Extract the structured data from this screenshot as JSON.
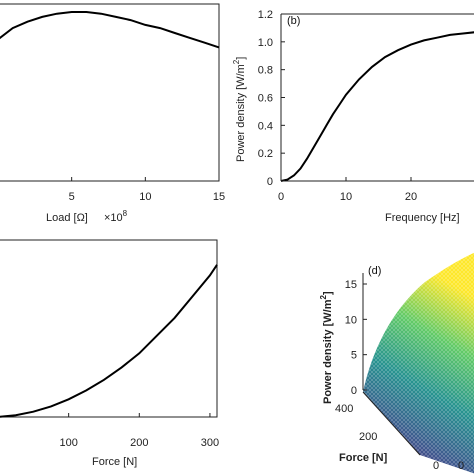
{
  "chart_data": [
    {
      "panel": "a",
      "type": "line",
      "xlabel": "Load [Ω]",
      "x_multiplier": "×10",
      "x_multiplier_exp": "8",
      "xlim": [
        0,
        15
      ],
      "xticks": [
        5,
        10,
        15
      ],
      "ylim": [
        0,
        1.1
      ],
      "series": [
        {
          "x": [
            0,
            1,
            2,
            3,
            4,
            5,
            6,
            7,
            8,
            9,
            10,
            11,
            12,
            13,
            14,
            15
          ],
          "y": [
            0.88,
            0.95,
            0.99,
            1.02,
            1.04,
            1.05,
            1.05,
            1.04,
            1.02,
            1.0,
            0.97,
            0.95,
            0.92,
            0.89,
            0.86,
            0.83
          ]
        }
      ]
    },
    {
      "panel": "b",
      "type": "line",
      "label": "(b)",
      "xlabel": "Frequency [Hz]",
      "ylabel": "Power density [W/m",
      "ylabel_sup": "2",
      "ylabel_end": "]",
      "xlim": [
        0,
        30
      ],
      "ylim": [
        0,
        1.2
      ],
      "xticks": [
        0,
        10,
        20
      ],
      "yticks": [
        0,
        0.2,
        0.4,
        0.6,
        0.8,
        1.0,
        1.2
      ],
      "ytick_labels": [
        "0",
        "0.2",
        "0.4",
        "0.6",
        "0.8",
        "1.0",
        "1.2"
      ],
      "series": [
        {
          "x": [
            0,
            1,
            2,
            3,
            4,
            5,
            6,
            7,
            8,
            9,
            10,
            12,
            14,
            16,
            18,
            20,
            22,
            24,
            26,
            28,
            30
          ],
          "y": [
            0,
            0.01,
            0.04,
            0.09,
            0.16,
            0.24,
            0.32,
            0.4,
            0.48,
            0.55,
            0.62,
            0.73,
            0.82,
            0.89,
            0.94,
            0.98,
            1.01,
            1.03,
            1.05,
            1.06,
            1.07
          ]
        }
      ]
    },
    {
      "panel": "c",
      "type": "line",
      "xlabel": "Force [N]",
      "xlim": [
        0,
        310
      ],
      "xticks": [
        100,
        200,
        300
      ],
      "ylim": [
        0,
        1
      ],
      "series": [
        {
          "x": [
            0,
            25,
            50,
            75,
            100,
            125,
            150,
            175,
            200,
            225,
            250,
            275,
            300,
            310
          ],
          "y": [
            0.0,
            0.01,
            0.03,
            0.06,
            0.1,
            0.15,
            0.21,
            0.28,
            0.36,
            0.46,
            0.56,
            0.68,
            0.8,
            0.86
          ]
        }
      ]
    },
    {
      "panel": "d",
      "type": "surface",
      "label": "(d)",
      "zlabel": "Power density [W/m",
      "zlabel_sup": "2",
      "zlabel_end": "]",
      "zticks": [
        0,
        5,
        10,
        15
      ],
      "force_axis_label": "Force [N]",
      "force_ticks": [
        400,
        200
      ],
      "other_ticks": [
        0,
        0
      ],
      "colormap": [
        "#440154",
        "#3b528b",
        "#21908d",
        "#5dc963",
        "#fde725"
      ]
    }
  ]
}
